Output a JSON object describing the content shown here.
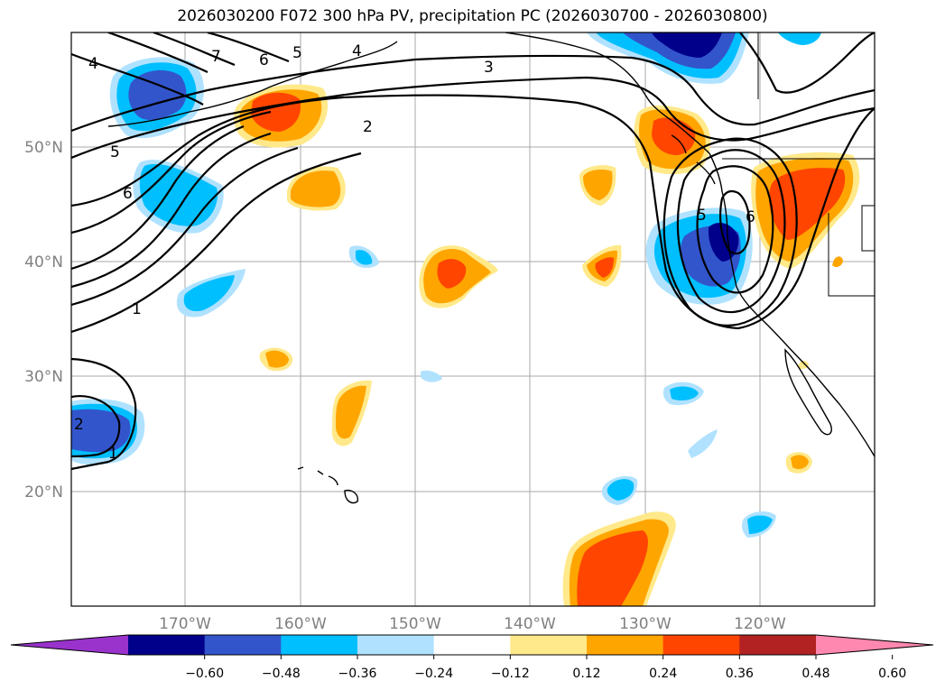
{
  "title": "2026030200 F072 300 hPa PV, precipitation PC (2026030700 - 2026030800)",
  "map": {
    "lat_labels": [
      "50°N",
      "40°N",
      "30°N",
      "20°N"
    ],
    "lon_labels": [
      "170°W",
      "160°W",
      "150°W",
      "140°W",
      "130°W",
      "120°W"
    ],
    "contour_labels": [
      "4",
      "7",
      "6",
      "5",
      "4",
      "3",
      "2",
      "5",
      "6",
      "1",
      "2",
      "1",
      "6",
      "5"
    ]
  },
  "colorbar": {
    "ticks": [
      "−0.60",
      "−0.48",
      "−0.36",
      "−0.24",
      "−0.12",
      "0.12",
      "0.24",
      "0.36",
      "0.48",
      "0.60"
    ],
    "colors": [
      "#9933cc",
      "#00008b",
      "#3355cc",
      "#00bfff",
      "#b0e2ff",
      "#ffffff",
      "#ffe98a",
      "#ffa500",
      "#ff4500",
      "#b22222",
      "#ff88b0"
    ]
  }
}
